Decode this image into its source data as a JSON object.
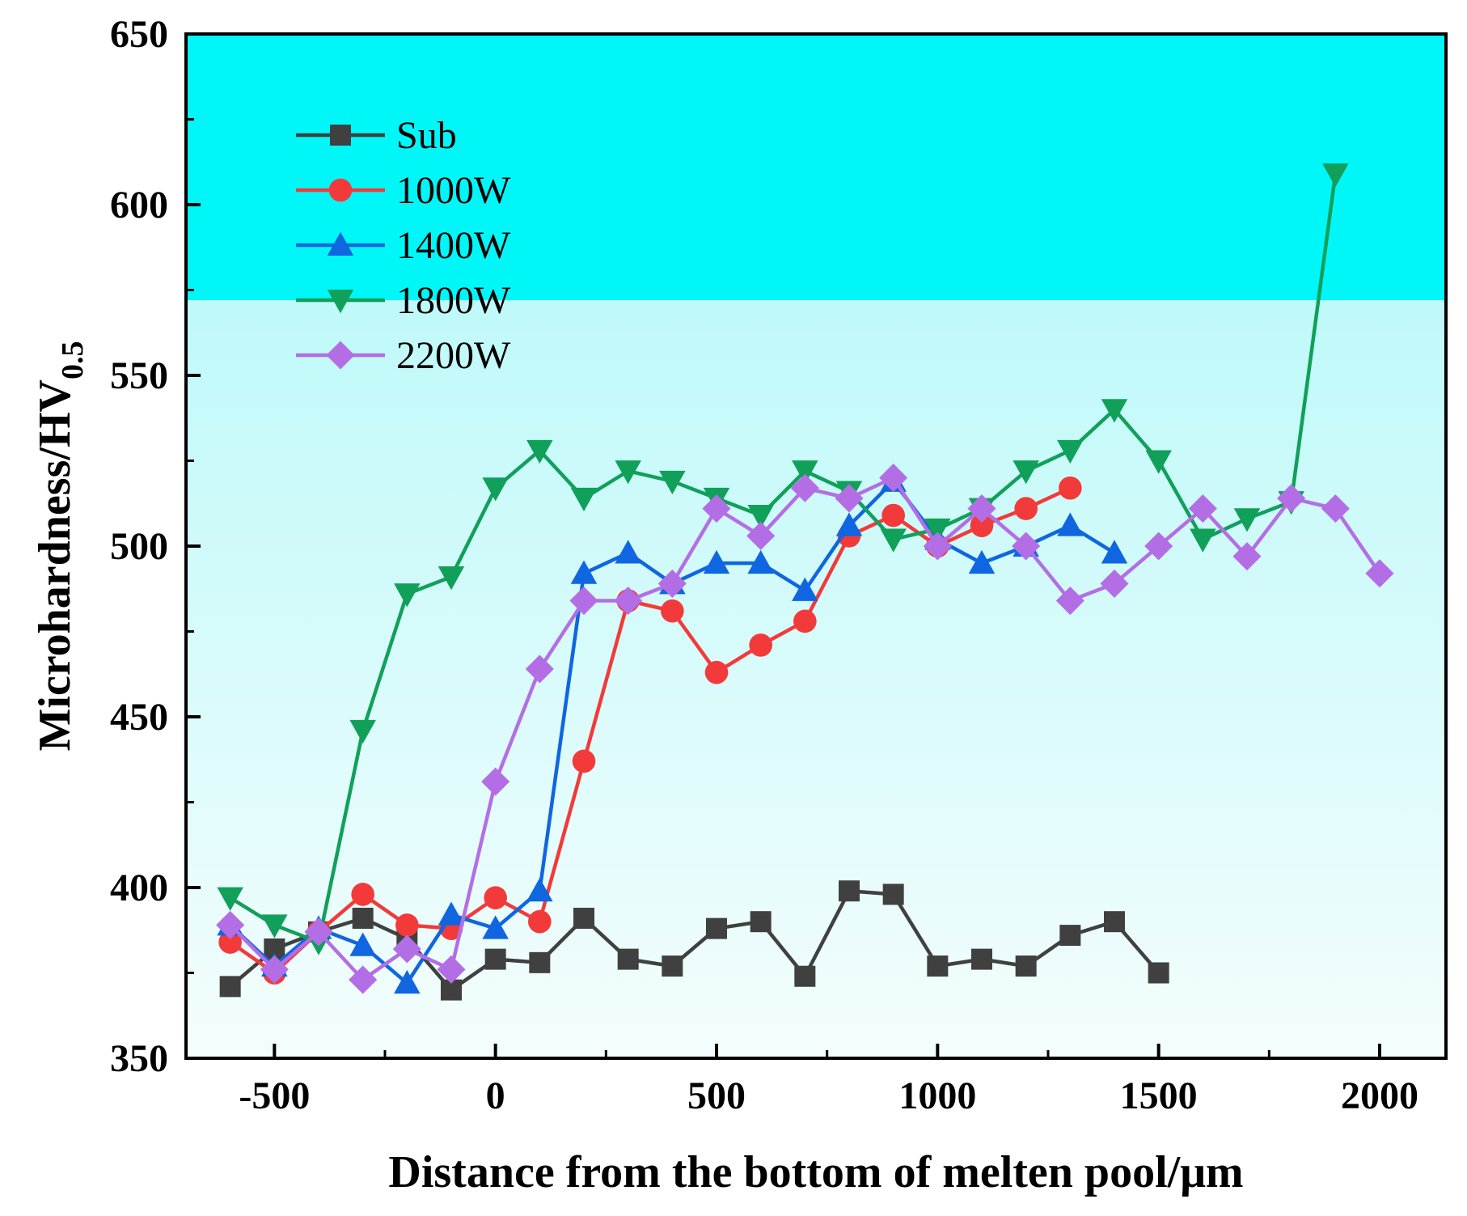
{
  "chart_data": {
    "type": "line",
    "xlabel": "Distance from the bottom of melten pool/μm",
    "ylabel_main": "Microhardness/HV",
    "ylabel_sub": "0.5",
    "xlim": [
      -700,
      2150
    ],
    "ylim": [
      350,
      650
    ],
    "xticks": [
      -500,
      0,
      500,
      1000,
      1500,
      2000
    ],
    "xtick_labels": [
      "-500",
      "0",
      "500",
      "1000",
      "1500",
      "2000"
    ],
    "yticks": [
      350,
      400,
      450,
      500,
      550,
      600,
      650
    ],
    "ytick_labels": [
      "350",
      "400",
      "450",
      "500",
      "550",
      "600",
      "650"
    ],
    "legend_position": "top-left",
    "background_gradient": [
      "#00f7f7",
      "#f4fdfd"
    ],
    "series": [
      {
        "name": "Sub",
        "color": "#404040",
        "marker": "square",
        "x": [
          -600,
          -500,
          -400,
          -300,
          -200,
          -100,
          0,
          100,
          200,
          300,
          400,
          500,
          600,
          700,
          800,
          900,
          1000,
          1100,
          1200,
          1300,
          1400,
          1500
        ],
        "y": [
          371,
          382,
          387,
          391,
          385,
          370,
          379,
          378,
          391,
          379,
          377,
          388,
          390,
          374,
          399,
          398,
          377,
          379,
          377,
          386,
          390,
          375
        ]
      },
      {
        "name": "1000W",
        "color": "#f23a3a",
        "marker": "circle",
        "x": [
          -600,
          -500,
          -400,
          -300,
          -200,
          -100,
          0,
          100,
          200,
          300,
          400,
          500,
          600,
          700,
          800,
          900,
          1000,
          1100,
          1200,
          1300
        ],
        "y": [
          384,
          375,
          387,
          398,
          389,
          388,
          397,
          390,
          437,
          484,
          481,
          463,
          471,
          478,
          503,
          509,
          500,
          506,
          511,
          517
        ]
      },
      {
        "name": "1400W",
        "color": "#0f66e0",
        "marker": "triangle-up",
        "x": [
          -600,
          -500,
          -400,
          -300,
          -200,
          -100,
          0,
          100,
          200,
          300,
          400,
          500,
          600,
          700,
          800,
          900,
          1000,
          1100,
          1200,
          1300,
          1400
        ],
        "y": [
          389,
          377,
          388,
          383,
          372,
          392,
          388,
          399,
          492,
          498,
          489,
          495,
          495,
          487,
          506,
          519,
          502,
          495,
          500,
          506,
          498
        ]
      },
      {
        "name": "1800W",
        "color": "#11a05a",
        "marker": "triangle-down",
        "x": [
          -600,
          -500,
          -400,
          -300,
          -200,
          -100,
          0,
          100,
          200,
          300,
          400,
          500,
          600,
          700,
          800,
          900,
          1000,
          1100,
          1200,
          1300,
          1400,
          1500,
          1600,
          1700,
          1800,
          1900
        ],
        "y": [
          397,
          389,
          384,
          446,
          486,
          491,
          517,
          528,
          514,
          522,
          519,
          514,
          509,
          522,
          516,
          502,
          505,
          511,
          522,
          528,
          540,
          525,
          502,
          508,
          513,
          609
        ]
      },
      {
        "name": "2200W",
        "color": "#b36ee6",
        "marker": "diamond",
        "x": [
          -600,
          -500,
          -400,
          -300,
          -200,
          -100,
          0,
          100,
          200,
          300,
          400,
          500,
          600,
          700,
          800,
          900,
          1000,
          1100,
          1200,
          1300,
          1400,
          1500,
          1600,
          1700,
          1800,
          1900,
          2000
        ],
        "y": [
          389,
          376,
          387,
          373,
          382,
          376,
          431,
          464,
          484,
          484,
          489,
          511,
          503,
          517,
          514,
          520,
          500,
          511,
          500,
          484,
          489,
          500,
          511,
          497,
          514,
          511,
          492
        ]
      }
    ]
  }
}
